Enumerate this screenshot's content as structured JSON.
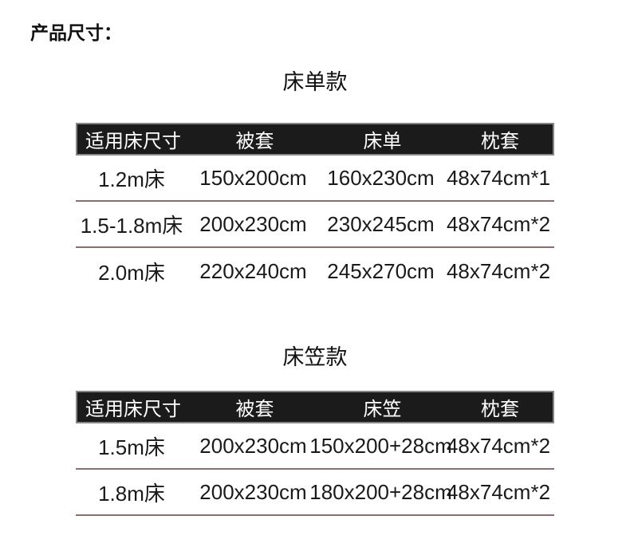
{
  "page": {
    "title": "产品尺寸："
  },
  "colors": {
    "header_bg": "#1b1b1b",
    "header_text": "#ffffff",
    "bar_border": "#858585",
    "divider": "#8d6e6c",
    "text": "#1a1a1a",
    "background": "#ffffff"
  },
  "tables": [
    {
      "section_title": "床单款",
      "headers": [
        "适用床尺寸",
        "被套",
        "床单",
        "枕套"
      ],
      "rows": [
        [
          "1.2m床",
          "150x200cm",
          "160x230cm",
          "48x74cm*1"
        ],
        [
          "1.5-1.8m床",
          "200x230cm",
          "230x245cm",
          "48x74cm*2"
        ],
        [
          "2.0m床",
          "220x240cm",
          "245x270cm",
          "48x74cm*2"
        ]
      ],
      "bottom_divider": false
    },
    {
      "section_title": "床笠款",
      "headers": [
        "适用床尺寸",
        "被套",
        "床笠",
        "枕套"
      ],
      "rows": [
        [
          "1.5m床",
          "200x230cm",
          "150x200+28cm",
          "48x74cm*2"
        ],
        [
          "1.8m床",
          "200x230cm",
          "180x200+28cm",
          "48x74cm*2"
        ]
      ],
      "bottom_divider": true
    }
  ]
}
